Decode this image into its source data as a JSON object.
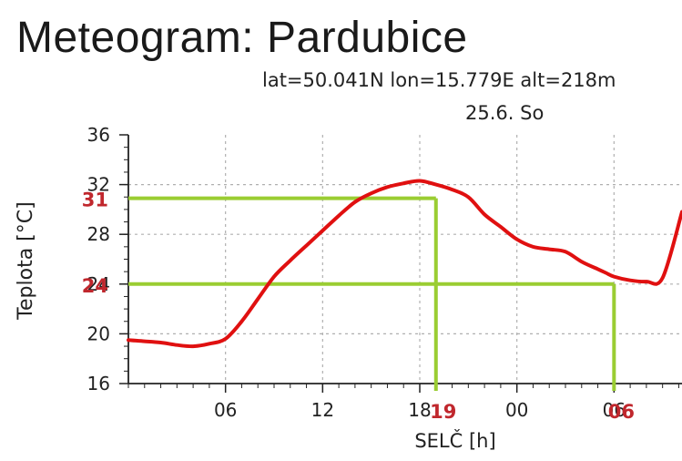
{
  "header": {
    "title": "Meteogram: Pardubice",
    "coords": "lat=50.041N lon=15.779E alt=218m",
    "date": "25.6. So"
  },
  "chart_data": {
    "type": "line",
    "ylabel": "Teplota [°C]",
    "xlabel": "SELČ [h]",
    "ylim": [
      16,
      36
    ],
    "y_ticks": [
      "16",
      "20",
      "24",
      "28",
      "32",
      "36"
    ],
    "x_ticks": [
      {
        "label": "06",
        "h": 6
      },
      {
        "label": "12",
        "h": 12
      },
      {
        "label": "18",
        "h": 18
      },
      {
        "label": "00",
        "h": 24
      },
      {
        "label": "06",
        "h": 30
      }
    ],
    "xlim_hours": [
      0,
      34.2
    ],
    "grid": true,
    "series": [
      {
        "color": "#e01010",
        "x_hours": [
          0,
          1,
          2,
          3,
          4,
          5,
          6,
          7,
          8,
          9,
          10,
          11,
          12,
          13,
          14,
          15,
          16,
          17,
          18,
          19,
          20,
          21,
          22,
          23,
          24,
          25,
          26,
          27,
          28,
          29,
          29.5,
          30,
          31,
          32,
          33,
          34.2
        ],
        "values": [
          19.5,
          19.4,
          19.3,
          19.1,
          19.0,
          19.2,
          19.6,
          21.0,
          22.8,
          24.6,
          25.9,
          27.1,
          28.3,
          29.5,
          30.6,
          31.3,
          31.8,
          32.1,
          32.3,
          32.0,
          31.6,
          31.0,
          29.6,
          28.6,
          27.6,
          27.0,
          26.8,
          26.6,
          25.8,
          25.2,
          24.9,
          24.6,
          24.3,
          24.2,
          24.5,
          29.8
        ]
      }
    ],
    "annotations": {
      "color": "#9acd32",
      "label_color": "#c0272d",
      "horizontal": [
        {
          "label": "31",
          "value": 30.9
        },
        {
          "label": "24",
          "value": 24.0
        }
      ],
      "vertical": [
        {
          "label": "19",
          "h": 19
        },
        {
          "label": "06",
          "h": 30
        }
      ]
    }
  }
}
